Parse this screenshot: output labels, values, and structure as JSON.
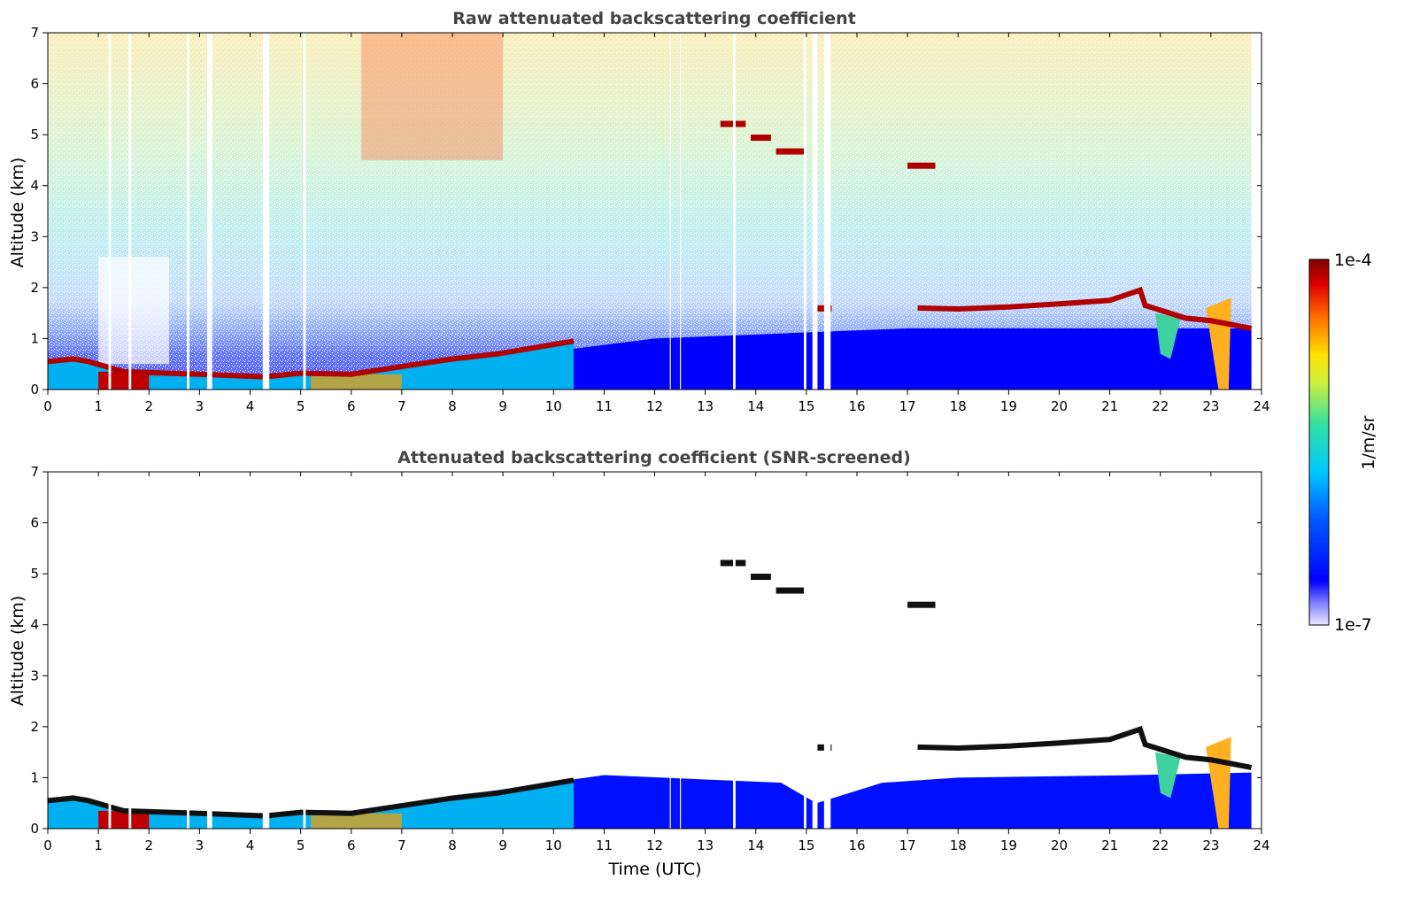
{
  "chart_data": [
    {
      "type": "heatmap",
      "title": "Raw attenuated backscattering coefficient",
      "xlabel": "",
      "ylabel": "Altitude (km)",
      "xlim": [
        0,
        24
      ],
      "ylim": [
        0,
        7
      ],
      "xticks": [
        "0",
        "1",
        "2",
        "3",
        "4",
        "5",
        "6",
        "7",
        "8",
        "9",
        "10",
        "11",
        "12",
        "13",
        "14",
        "15",
        "16",
        "17",
        "18",
        "19",
        "20",
        "21",
        "22",
        "23",
        "24"
      ],
      "yticks": [
        "0",
        "1",
        "2",
        "3",
        "4",
        "5",
        "6",
        "7"
      ],
      "boundary_layer_top_km": [
        [
          0,
          0.55
        ],
        [
          0.5,
          0.6
        ],
        [
          0.8,
          0.55
        ],
        [
          1.5,
          0.35
        ],
        [
          3,
          0.3
        ],
        [
          4.3,
          0.25
        ],
        [
          5,
          0.32
        ],
        [
          6,
          0.3
        ],
        [
          7,
          0.45
        ],
        [
          8,
          0.6
        ],
        [
          8.9,
          0.7
        ],
        [
          9.5,
          0.8
        ],
        [
          10.4,
          0.95
        ],
        [
          17.2,
          1.6
        ],
        [
          18,
          1.58
        ],
        [
          19,
          1.62
        ],
        [
          20,
          1.68
        ],
        [
          21,
          1.75
        ],
        [
          21.6,
          1.95
        ],
        [
          21.7,
          1.65
        ],
        [
          22.5,
          1.4
        ],
        [
          23,
          1.35
        ],
        [
          23.8,
          1.2
        ]
      ],
      "elevated_layers": [
        {
          "t0": 13.3,
          "t1": 13.8,
          "alt_km": 5.22
        },
        {
          "t0": 13.9,
          "t1": 14.3,
          "alt_km": 4.95
        },
        {
          "t0": 14.4,
          "t1": 14.99,
          "alt_km": 4.68
        },
        {
          "t0": 15.2,
          "t1": 15.5,
          "alt_km": 1.6
        },
        {
          "t0": 17.0,
          "t1": 17.55,
          "alt_km": 4.4
        }
      ],
      "data_gaps_utc": [
        [
          1.2,
          1.25
        ],
        [
          1.6,
          1.65
        ],
        [
          2.75,
          2.8
        ],
        [
          3.15,
          3.25
        ],
        [
          4.25,
          4.38
        ],
        [
          5.05,
          5.1
        ],
        [
          12.3,
          12.32
        ],
        [
          12.5,
          12.52
        ],
        [
          13.55,
          13.6
        ],
        [
          14.95,
          15.0
        ],
        [
          15.12,
          15.22
        ],
        [
          15.35,
          15.48
        ]
      ]
    },
    {
      "type": "heatmap",
      "title": "Attenuated backscattering coefficient (SNR-screened)",
      "xlabel": "Time (UTC)",
      "ylabel": "Altitude (km)",
      "xlim": [
        0,
        24
      ],
      "ylim": [
        0,
        7
      ],
      "xticks": [
        "0",
        "1",
        "2",
        "3",
        "4",
        "5",
        "6",
        "7",
        "8",
        "9",
        "10",
        "11",
        "12",
        "13",
        "14",
        "15",
        "16",
        "17",
        "18",
        "19",
        "20",
        "21",
        "22",
        "23",
        "24"
      ],
      "yticks": [
        "0",
        "1",
        "2",
        "3",
        "4",
        "5",
        "6",
        "7"
      ],
      "screened": true
    }
  ],
  "colorbar": {
    "label": "1/m/sr",
    "max_label": "1e-4",
    "min_label": "1e-7",
    "scale": "log",
    "colormap": "jet"
  },
  "colors": {
    "low": "#0000ff",
    "mid": "#33cc99",
    "high": "#ffcc00",
    "max": "#800000",
    "title": "#444444"
  }
}
